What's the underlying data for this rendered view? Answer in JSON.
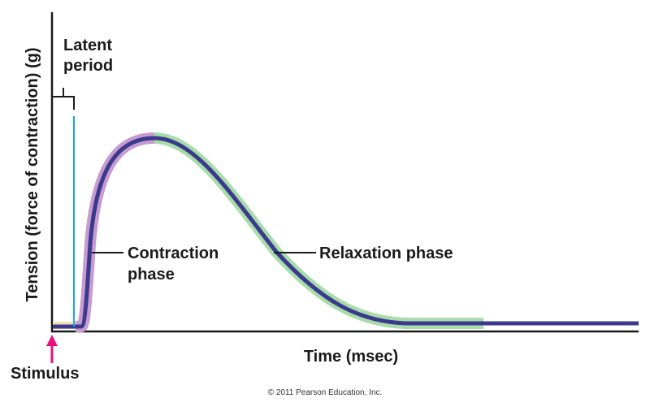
{
  "figure": {
    "y_axis_label": "Tension (force of contraction) (g)",
    "x_axis_label": "Time (msec)",
    "latent_period_label": [
      "Latent",
      "period"
    ],
    "contraction_label": [
      "Contraction",
      "phase"
    ],
    "relaxation_label": "Relaxation phase",
    "stimulus_label": "Stimulus",
    "copyright": "© 2011 Pearson Education, Inc."
  },
  "colors": {
    "curve": "#3b3a8f",
    "contraction_band": "#c79bcf",
    "relaxation_band": "#a8dca8",
    "latent_band": "#f6dfb4",
    "stimulus_marker": "#e8117f",
    "stimulus_line": "#1aa3e0",
    "axes": "#1a1a1a"
  },
  "icons": {
    "stimulus": "up-arrow"
  }
}
